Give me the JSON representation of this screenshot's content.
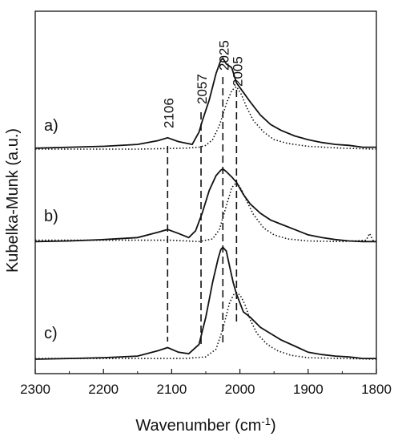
{
  "chart_data": {
    "type": "line",
    "title": "",
    "xlabel": "Wavenumber (cm",
    "xlabel_superscript": "-1",
    "xlabel_suffix": ")",
    "ylabel": "Kubelka-Munk (a.u.)",
    "xlim": [
      2300,
      1800
    ],
    "x_reversed": true,
    "x_ticks": [
      2300,
      2200,
      2100,
      2000,
      1900,
      1800
    ],
    "y_tick_labels": false,
    "grid": false,
    "legend": "none",
    "line_color": "#111111",
    "peak_markers": [
      {
        "position": 2106,
        "label": "2106"
      },
      {
        "position": 2057,
        "label": "2057"
      },
      {
        "position": 2025,
        "label": "2025"
      },
      {
        "position": 2005,
        "label": "2005"
      }
    ],
    "panels": [
      {
        "label": "a)",
        "series": [
          {
            "style": "solid",
            "x": [
              2300,
              2250,
              2200,
              2150,
              2120,
              2106,
              2090,
              2070,
              2060,
              2055,
              2045,
              2035,
              2028,
              2025,
              2020,
              2012,
              2005,
              1995,
              1985,
              1970,
              1955,
              1940,
              1920,
              1900,
              1880,
              1860,
              1840,
              1820,
              1800
            ],
            "y": [
              0.01,
              0.02,
              0.03,
              0.05,
              0.09,
              0.12,
              0.08,
              0.05,
              0.18,
              0.3,
              0.52,
              0.8,
              0.94,
              0.96,
              0.9,
              0.86,
              0.7,
              0.6,
              0.5,
              0.36,
              0.26,
              0.2,
              0.14,
              0.1,
              0.07,
              0.05,
              0.04,
              0.02,
              0.02
            ]
          },
          {
            "style": "dotted",
            "x": [
              2300,
              2150,
              2080,
              2060,
              2050,
              2040,
              2030,
              2020,
              2012,
              2005,
              1998,
              1990,
              1980,
              1965,
              1950,
              1930,
              1900,
              1850,
              1800
            ],
            "y": [
              0.0,
              0.0,
              0.01,
              0.02,
              0.04,
              0.1,
              0.25,
              0.48,
              0.62,
              0.66,
              0.58,
              0.44,
              0.3,
              0.18,
              0.1,
              0.06,
              0.03,
              0.01,
              0.0
            ]
          }
        ]
      },
      {
        "label": "b)",
        "series": [
          {
            "style": "solid",
            "x": [
              2300,
              2250,
              2200,
              2150,
              2120,
              2106,
              2090,
              2075,
              2065,
              2055,
              2045,
              2035,
              2028,
              2025,
              2020,
              2012,
              2005,
              1995,
              1985,
              1970,
              1955,
              1940,
              1920,
              1900,
              1880,
              1860,
              1840,
              1820,
              1800
            ],
            "y": [
              0.02,
              0.03,
              0.05,
              0.08,
              0.16,
              0.2,
              0.14,
              0.08,
              0.18,
              0.45,
              0.78,
              1.0,
              1.08,
              1.1,
              1.06,
              0.98,
              0.9,
              0.72,
              0.58,
              0.44,
              0.34,
              0.28,
              0.2,
              0.12,
              0.08,
              0.05,
              0.03,
              0.02,
              0.02
            ]
          },
          {
            "style": "dotted",
            "x": [
              2300,
              2200,
              2100,
              2060,
              2040,
              2030,
              2020,
              2012,
              2005,
              1998,
              1990,
              1980,
              1965,
              1950,
              1930,
              1900,
              1850,
              1815,
              1810,
              1805,
              1800
            ],
            "y": [
              0.04,
              0.04,
              0.04,
              0.02,
              0.06,
              0.2,
              0.55,
              0.82,
              0.9,
              0.8,
              0.62,
              0.42,
              0.22,
              0.12,
              0.06,
              0.03,
              0.02,
              0.04,
              0.14,
              0.04,
              0.02
            ]
          }
        ]
      },
      {
        "label": "c)",
        "series": [
          {
            "style": "solid",
            "x": [
              2300,
              2250,
              2200,
              2150,
              2120,
              2106,
              2090,
              2075,
              2060,
              2050,
              2040,
              2032,
              2028,
              2025,
              2020,
              2015,
              2010,
              2005,
              1995,
              1985,
              1970,
              1955,
              1940,
              1920,
              1900,
              1880,
              1860,
              1840,
              1820,
              1800
            ],
            "y": [
              0.01,
              0.02,
              0.03,
              0.05,
              0.12,
              0.16,
              0.1,
              0.08,
              0.2,
              0.55,
              1.0,
              1.3,
              1.42,
              1.45,
              1.4,
              1.2,
              1.0,
              0.85,
              0.62,
              0.55,
              0.42,
              0.34,
              0.26,
              0.18,
              0.1,
              0.07,
              0.05,
              0.04,
              0.02,
              0.02
            ]
          },
          {
            "style": "dotted",
            "x": [
              2300,
              2150,
              2080,
              2050,
              2035,
              2025,
              2015,
              2008,
              2000,
              1993,
              1985,
              1975,
              1960,
              1945,
              1925,
              1900,
              1850,
              1800
            ],
            "y": [
              0.02,
              0.02,
              0.02,
              0.04,
              0.14,
              0.4,
              0.74,
              0.86,
              0.84,
              0.72,
              0.52,
              0.34,
              0.2,
              0.12,
              0.06,
              0.03,
              0.02,
              0.01
            ]
          }
        ]
      }
    ]
  }
}
